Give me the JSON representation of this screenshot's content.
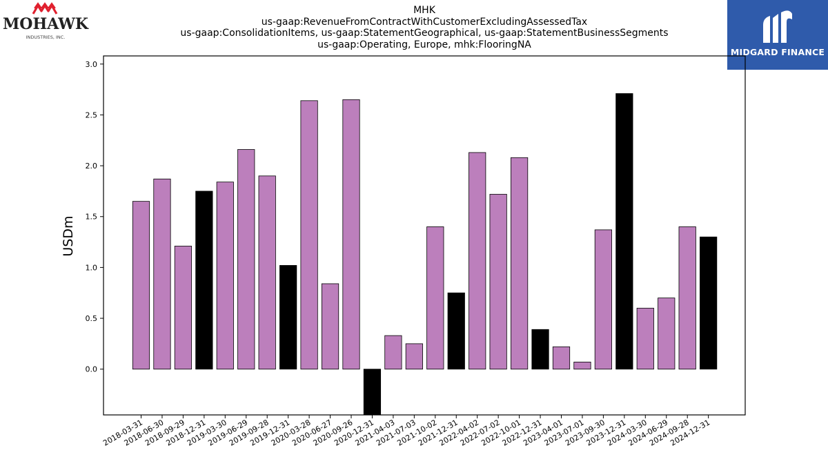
{
  "logos": {
    "left_name": "MOHAWK",
    "left_sub": "INDUSTRIES, INC.",
    "right_name": "MIDGARD FINANCE"
  },
  "colors": {
    "bar_default": "#bc7fbc",
    "bar_q4": "#000000",
    "logo_red": "#e0202e",
    "brand_blue": "#2f5bab"
  },
  "chart_data": {
    "type": "bar",
    "title_lines": [
      "MHK",
      "us-gaap:RevenueFromContractWithCustomerExcludingAssessedTax",
      "us-gaap:ConsolidationItems, us-gaap:StatementGeographical, us-gaap:StatementBusinessSegments",
      "us-gaap:Operating, Europe, mhk:FlooringNA"
    ],
    "xlabel": "",
    "ylabel": "USDm",
    "ylim": [
      -0.45,
      3.08
    ],
    "yticks": [
      "0.0",
      "0.5",
      "1.0",
      "1.5",
      "2.0",
      "2.5",
      "3.0"
    ],
    "grid": false,
    "categories": [
      "2018-03-31",
      "2018-06-30",
      "2018-09-29",
      "2018-12-31",
      "2019-03-30",
      "2019-06-29",
      "2019-09-28",
      "2019-12-31",
      "2020-03-28",
      "2020-06-27",
      "2020-09-26",
      "2020-12-31",
      "2021-04-03",
      "2021-07-03",
      "2021-10-02",
      "2021-12-31",
      "2022-04-02",
      "2022-07-02",
      "2022-10-01",
      "2022-12-31",
      "2023-04-01",
      "2023-07-01",
      "2023-09-30",
      "2023-12-31",
      "2024-03-30",
      "2024-06-29",
      "2024-09-28",
      "2024-12-31"
    ],
    "values": [
      1.65,
      1.87,
      1.21,
      1.75,
      1.84,
      2.16,
      1.9,
      1.02,
      2.64,
      0.84,
      2.65,
      -0.45,
      0.33,
      0.25,
      1.4,
      0.75,
      2.13,
      1.72,
      2.08,
      0.39,
      0.22,
      0.07,
      1.37,
      2.71,
      0.6,
      0.7,
      1.4,
      1.3
    ],
    "highlight": [
      false,
      false,
      false,
      true,
      false,
      false,
      false,
      true,
      false,
      false,
      false,
      true,
      false,
      false,
      false,
      true,
      false,
      false,
      false,
      true,
      false,
      false,
      false,
      true,
      false,
      false,
      false,
      true
    ]
  }
}
